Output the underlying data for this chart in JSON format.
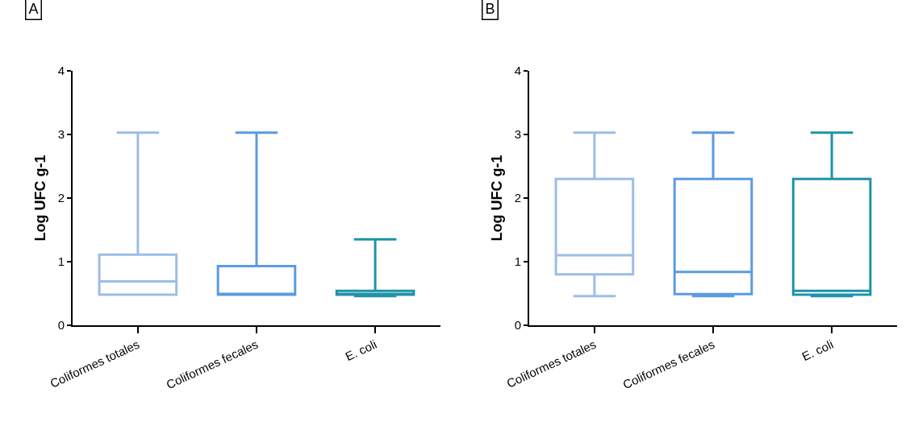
{
  "chart_data": [
    {
      "type": "box",
      "title": "A",
      "ylabel": "Log UFC g-1",
      "categories": [
        "Coliformes totales",
        "Coliformes fecales",
        "E. coli"
      ],
      "colors": [
        "#9dbde8",
        "#5b9be0",
        "#1e93a8"
      ],
      "ylim": [
        0,
        4
      ],
      "yticks": [
        0,
        1,
        2,
        3,
        4
      ],
      "grid": false,
      "boxes": [
        {
          "low": 0.48,
          "q1": 0.48,
          "median": 0.69,
          "q3": 1.11,
          "high": 3.03
        },
        {
          "low": 0.48,
          "q1": 0.48,
          "median": 0.48,
          "q3": 0.93,
          "high": 3.03
        },
        {
          "low": 0.46,
          "q1": 0.48,
          "median": 0.48,
          "q3": 0.54,
          "high": 1.35
        }
      ]
    },
    {
      "type": "box",
      "title": "B",
      "ylabel": "Log UFC g-1",
      "categories": [
        "Coliformes totales",
        "Coliformes fecales",
        "E. coli"
      ],
      "colors": [
        "#9dbde8",
        "#5b9be0",
        "#1e93a8"
      ],
      "ylim": [
        0,
        4
      ],
      "yticks": [
        0,
        1,
        2,
        3,
        4
      ],
      "grid": false,
      "boxes": [
        {
          "low": 0.46,
          "q1": 0.8,
          "median": 1.1,
          "q3": 2.3,
          "high": 3.03
        },
        {
          "low": 0.46,
          "q1": 0.49,
          "median": 0.84,
          "q3": 2.3,
          "high": 3.03
        },
        {
          "low": 0.46,
          "q1": 0.48,
          "median": 0.54,
          "q3": 2.3,
          "high": 3.03
        }
      ]
    }
  ]
}
